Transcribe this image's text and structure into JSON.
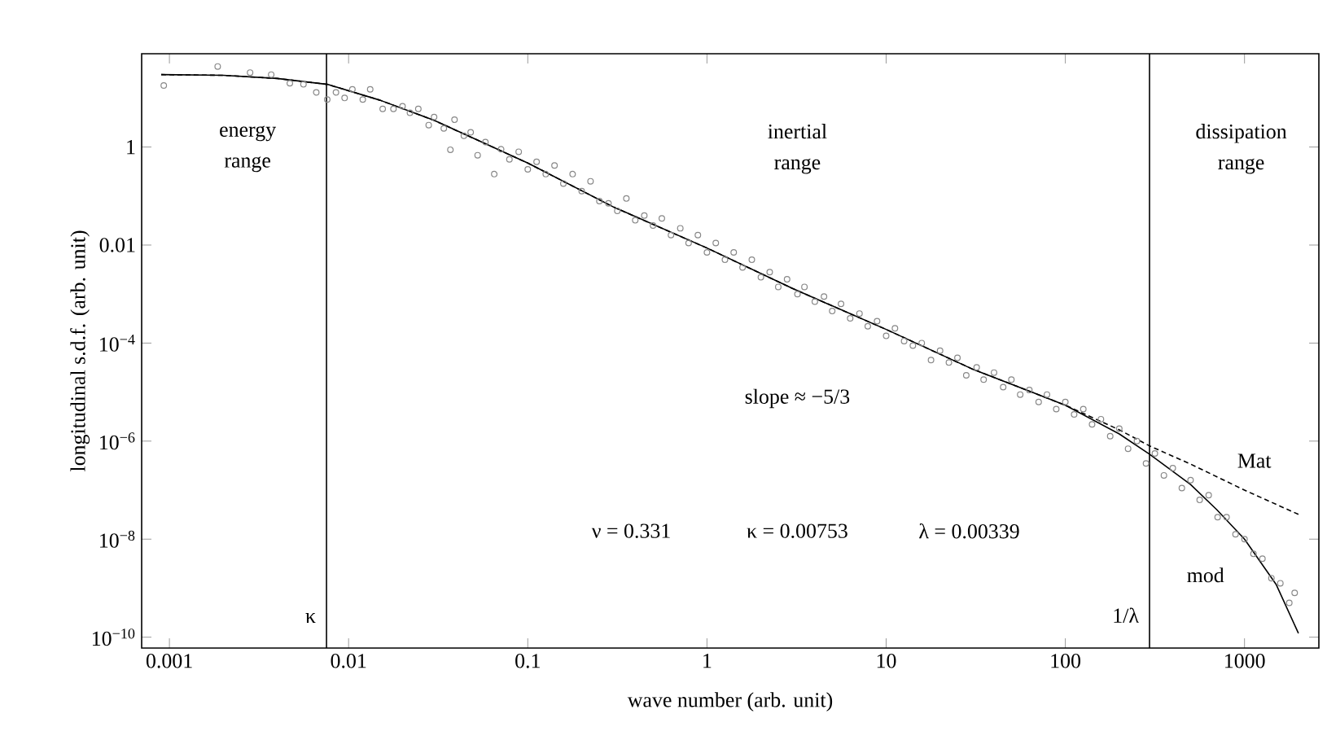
{
  "chart_data": {
    "type": "scatter",
    "xlabel": "wave number (arb. unit)",
    "ylabel": "longitudinal s.d.f. (arb. unit)",
    "log": "xy",
    "xlim": [
      0.0007,
      2600
    ],
    "ylim": [
      6e-11,
      80
    ],
    "xticks": [
      0.001,
      0.01,
      0.1,
      1,
      10,
      100,
      1000
    ],
    "yticks": [
      {
        "value": 1e-10,
        "label": "10$^{−10}$"
      },
      {
        "value": 1e-08,
        "label": "10$^{−8}$"
      },
      {
        "value": 1e-06,
        "label": "10$^{−6}$"
      },
      {
        "value": 0.0001,
        "label": "10$^{−4}$"
      },
      0.01,
      1
    ],
    "series": [
      {
        "marker": "circle",
        "color": "#888888",
        "x": [
          0.00093,
          0.00186,
          0.00282,
          0.0037,
          0.0047,
          0.0056,
          0.0066,
          0.0076,
          0.0085,
          0.0095,
          0.0105,
          0.012,
          0.0132,
          0.0155,
          0.0178,
          0.02,
          0.022,
          0.0245,
          0.028,
          0.03,
          0.034,
          0.037,
          0.039,
          0.044,
          0.048,
          0.0525,
          0.058,
          0.065,
          0.071,
          0.079,
          0.089,
          0.1,
          0.112,
          0.126,
          0.141,
          0.158,
          0.178,
          0.2,
          0.224,
          0.251,
          0.282,
          0.316,
          0.355,
          0.398,
          0.447,
          0.5,
          0.56,
          0.63,
          0.71,
          0.79,
          0.89,
          1,
          1.12,
          1.26,
          1.41,
          1.58,
          1.78,
          2.0,
          2.24,
          2.5,
          2.8,
          3.2,
          3.5,
          4.0,
          4.5,
          5.0,
          5.6,
          6.3,
          7.1,
          7.9,
          8.9,
          10,
          11.2,
          12.6,
          14.1,
          15.8,
          17.8,
          20,
          22.4,
          25,
          28,
          32,
          35,
          40,
          45,
          50,
          56,
          63,
          71,
          79,
          89,
          100,
          112,
          126,
          141,
          158,
          178,
          200,
          224,
          251,
          282,
          316,
          355,
          398,
          447,
          500,
          562,
          631,
          708,
          794,
          891,
          1000,
          1122,
          1259,
          1413,
          1585,
          1778,
          1905
        ],
        "values": [
          18,
          44,
          33,
          30,
          20,
          19,
          13,
          9.3,
          13,
          10,
          15,
          9.3,
          15,
          6,
          6,
          6.8,
          5,
          6,
          2.8,
          4.1,
          2.4,
          0.88,
          3.6,
          1.7,
          2.0,
          0.68,
          1.26,
          0.28,
          0.9,
          0.56,
          0.8,
          0.35,
          0.5,
          0.28,
          0.42,
          0.18,
          0.28,
          0.126,
          0.2,
          0.079,
          0.071,
          0.05,
          0.089,
          0.032,
          0.04,
          0.025,
          0.035,
          0.016,
          0.022,
          0.011,
          0.016,
          0.0071,
          0.011,
          0.005,
          0.0071,
          0.0035,
          0.005,
          0.0022,
          0.0028,
          0.0014,
          0.002,
          0.001,
          0.0014,
          0.0007,
          0.00089,
          0.00045,
          0.00063,
          0.00032,
          0.0004,
          0.00022,
          0.00028,
          0.00014,
          0.0002,
          0.00011,
          8.9e-05,
          0.0001,
          4.5e-05,
          7e-05,
          4e-05,
          5e-05,
          2.2e-05,
          3.2e-05,
          1.8e-05,
          2.5e-05,
          1.26e-05,
          1.8e-05,
          8.9e-06,
          1.1e-05,
          6.3e-06,
          8.9e-06,
          4.5e-06,
          6.3e-06,
          3.5e-06,
          4.5e-06,
          2.2e-06,
          2.8e-06,
          1.26e-06,
          1.8e-06,
          7e-07,
          1e-06,
          3.5e-07,
          5.6e-07,
          2e-07,
          2.8e-07,
          1.1e-07,
          1.6e-07,
          6.3e-08,
          7.9e-08,
          2.8e-08,
          2.8e-08,
          1.26e-08,
          1e-08,
          5e-09,
          4e-09,
          1.6e-09,
          1.26e-09,
          5e-10,
          8e-10
        ]
      },
      {
        "type": "line",
        "name": "Mat",
        "line_style": "dashed",
        "color": "#000000",
        "x": [
          0.0009,
          0.002,
          0.004,
          0.0076,
          0.015,
          0.03,
          0.1,
          0.3,
          1,
          3,
          10,
          30,
          100,
          200,
          295,
          500,
          1000,
          2000
        ],
        "values": [
          30,
          29,
          25,
          19,
          9,
          3.5,
          0.47,
          0.06,
          0.0087,
          0.0013,
          0.00019,
          3e-05,
          5.4e-06,
          1.7e-06,
          8e-07,
          3.4e-07,
          1e-07,
          3.2e-08
        ]
      },
      {
        "type": "line",
        "name": "mod",
        "line_style": "solid",
        "color": "#000000",
        "x": [
          0.0009,
          0.002,
          0.004,
          0.0076,
          0.015,
          0.03,
          0.1,
          0.3,
          1,
          3,
          10,
          30,
          100,
          200,
          295,
          500,
          700,
          1000,
          1500,
          2000
        ],
        "values": [
          30,
          29,
          25,
          19,
          9,
          3.5,
          0.47,
          0.06,
          0.0087,
          0.0013,
          0.00019,
          3e-05,
          5.4e-06,
          1.4e-06,
          5.4e-07,
          1.3e-07,
          4e-08,
          1e-08,
          1.2e-09,
          1.2e-10
        ]
      }
    ],
    "ref_lines": [
      {
        "axis": "x",
        "value": 0.00753,
        "label": "κ",
        "color": "#000000"
      },
      {
        "axis": "x",
        "value": 295,
        "label": "1/λ",
        "color": "#000000"
      }
    ],
    "annotations": [
      "energy range",
      "inertial range",
      "dissipation range",
      "slope ≈ −5/3",
      "ν = 0.331",
      "κ = 0.00753",
      "λ = 0.00339"
    ]
  }
}
